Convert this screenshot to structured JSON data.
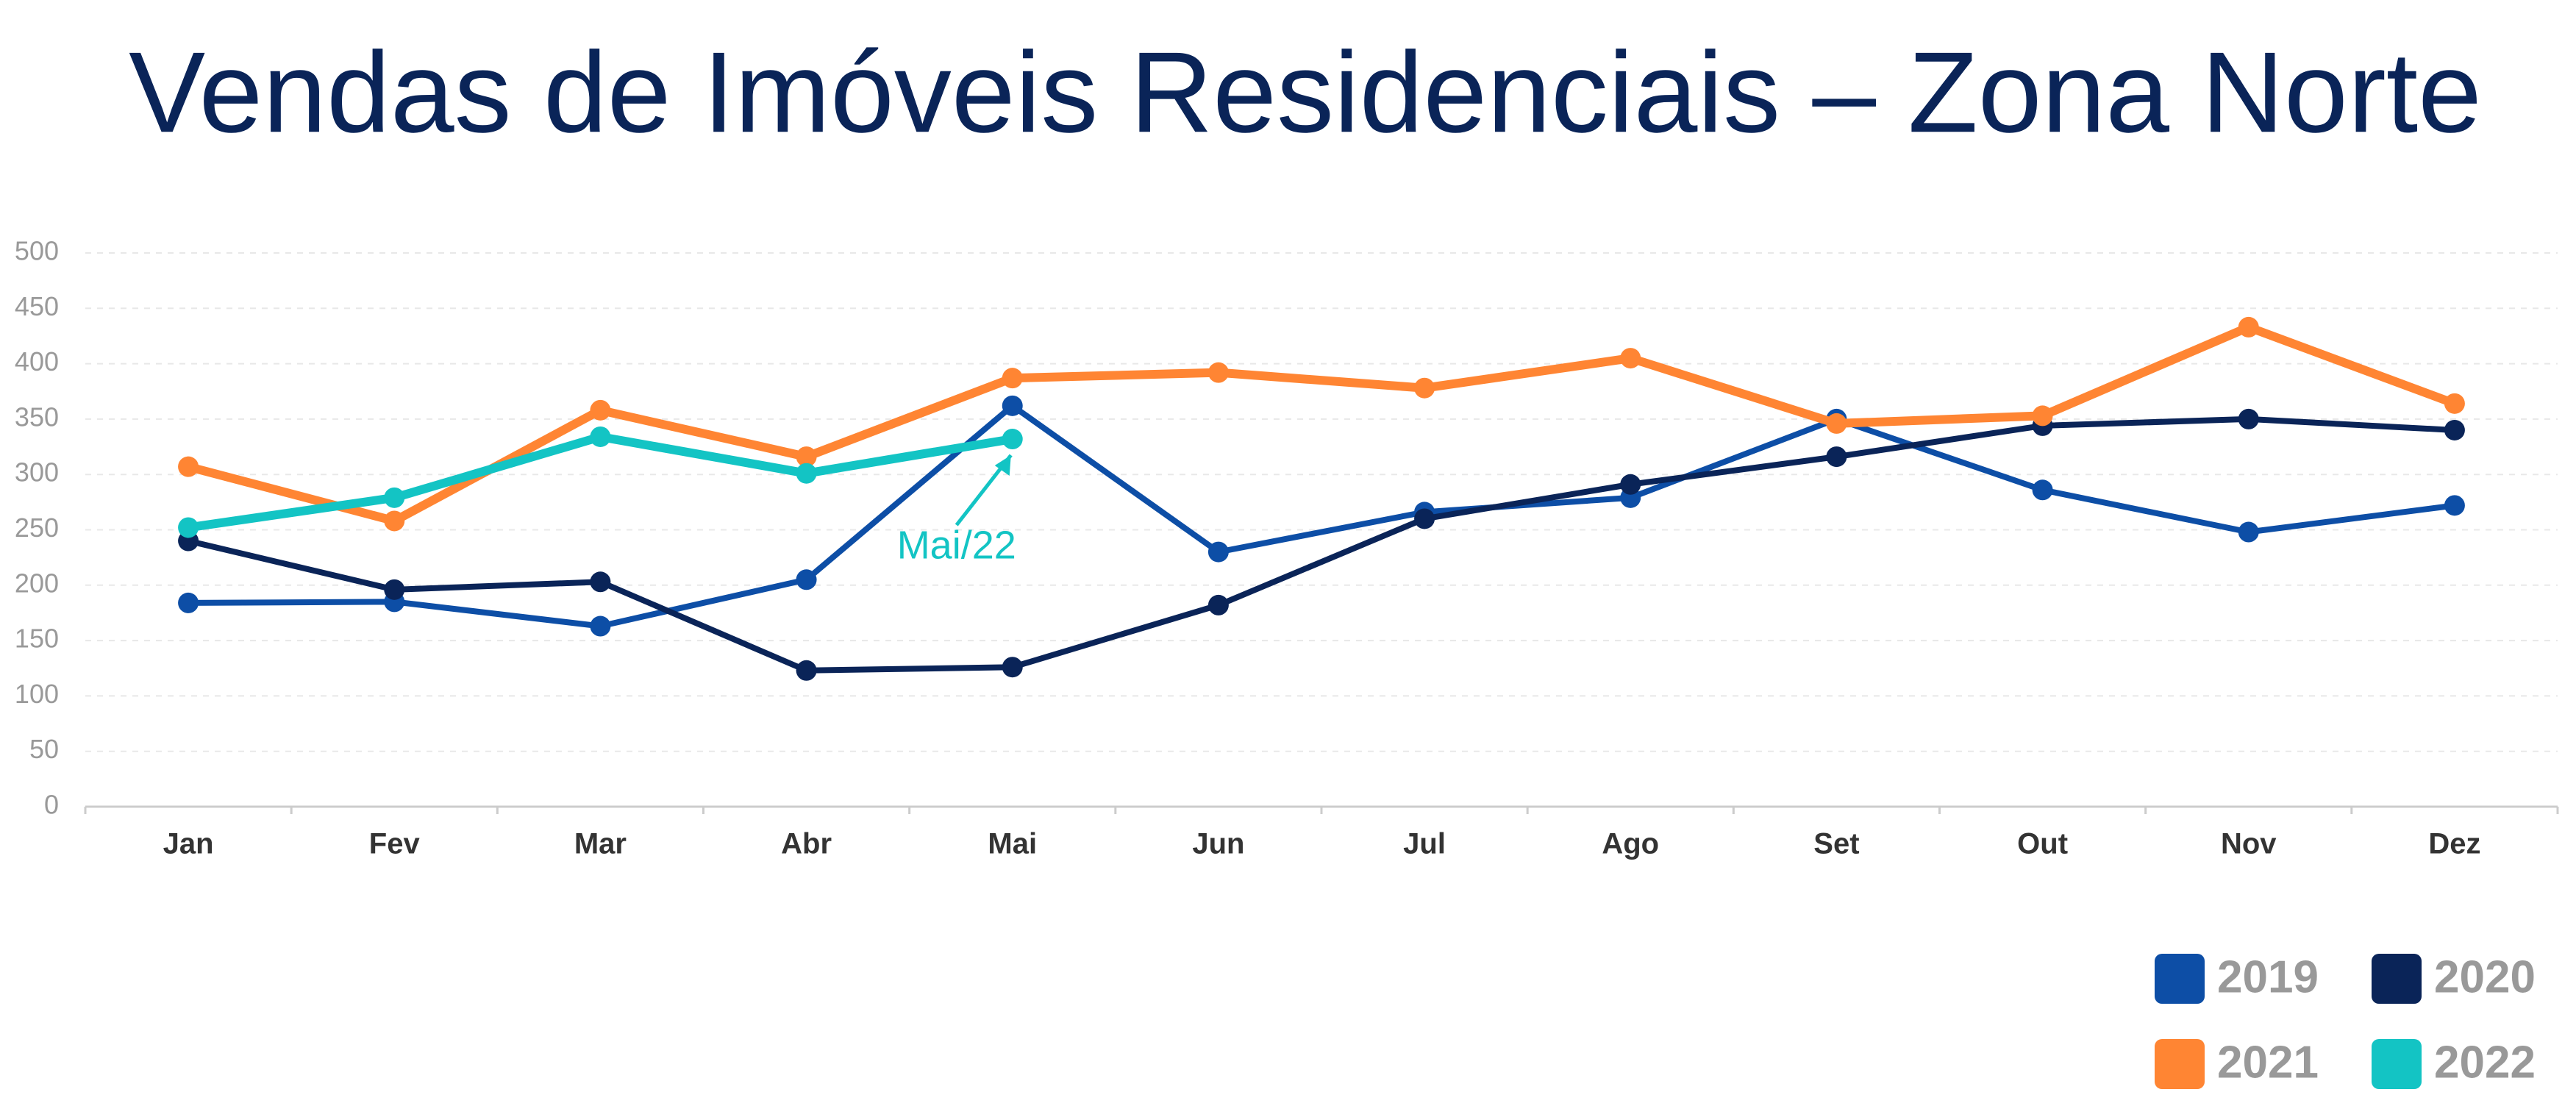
{
  "chart_data": {
    "type": "line",
    "title": "Vendas de Imóveis Residenciais – Zona Norte",
    "categories": [
      "Jan",
      "Fev",
      "Mar",
      "Abr",
      "Mai",
      "Jun",
      "Jul",
      "Ago",
      "Set",
      "Out",
      "Nov",
      "Dez"
    ],
    "series": [
      {
        "name": "2019",
        "color": "#0d4ea6",
        "values": [
          184,
          185,
          163,
          205,
          362,
          230,
          266,
          279,
          350,
          286,
          248,
          272
        ]
      },
      {
        "name": "2020",
        "color": "#0a2458",
        "values": [
          240,
          196,
          203,
          123,
          126,
          182,
          260,
          291,
          316,
          344,
          350,
          340
        ]
      },
      {
        "name": "2021",
        "color": "#ff8533",
        "values": [
          307,
          258,
          358,
          316,
          387,
          392,
          378,
          405,
          346,
          353,
          433,
          364
        ]
      },
      {
        "name": "2022",
        "color": "#13c4c4",
        "values": [
          252,
          279,
          334,
          301,
          332,
          null,
          null,
          null,
          null,
          null,
          null,
          null
        ]
      }
    ],
    "ylim": [
      0,
      500
    ],
    "yticks": [
      0,
      50,
      100,
      150,
      200,
      250,
      300,
      350,
      400,
      450,
      500
    ],
    "grid": true,
    "annotations": [
      {
        "text": "Mai/22",
        "series": 3,
        "index": 4
      }
    ]
  }
}
